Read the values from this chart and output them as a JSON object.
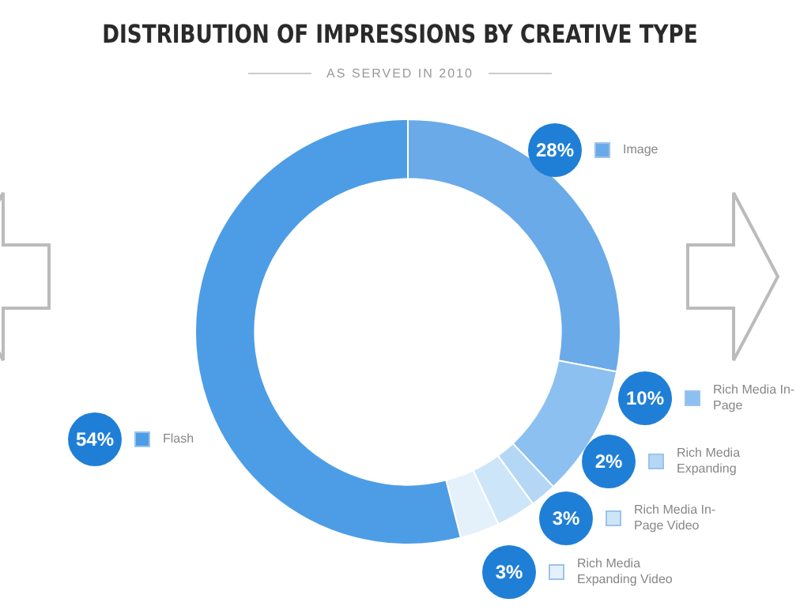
{
  "chart_data": {
    "type": "donut",
    "title": "DISTRIBUTION OF IMPRESSIONS BY CREATIVE TYPE",
    "subtitle": "AS SERVED IN 2010",
    "categories": [
      "Image",
      "Rich Media In-Page",
      "Rich Media Expanding",
      "Rich Media In-Page Video",
      "Rich Media Expanding Video",
      "Flash"
    ],
    "values": [
      28,
      10,
      2,
      3,
      3,
      54
    ],
    "value_labels": [
      "28%",
      "10%",
      "2%",
      "3%",
      "3%",
      "54%"
    ],
    "colors": [
      "#6aaae8",
      "#8cc0f0",
      "#b4d7f5",
      "#cde5f8",
      "#e4f1fb",
      "#4d9de6"
    ],
    "legend": "right"
  }
}
